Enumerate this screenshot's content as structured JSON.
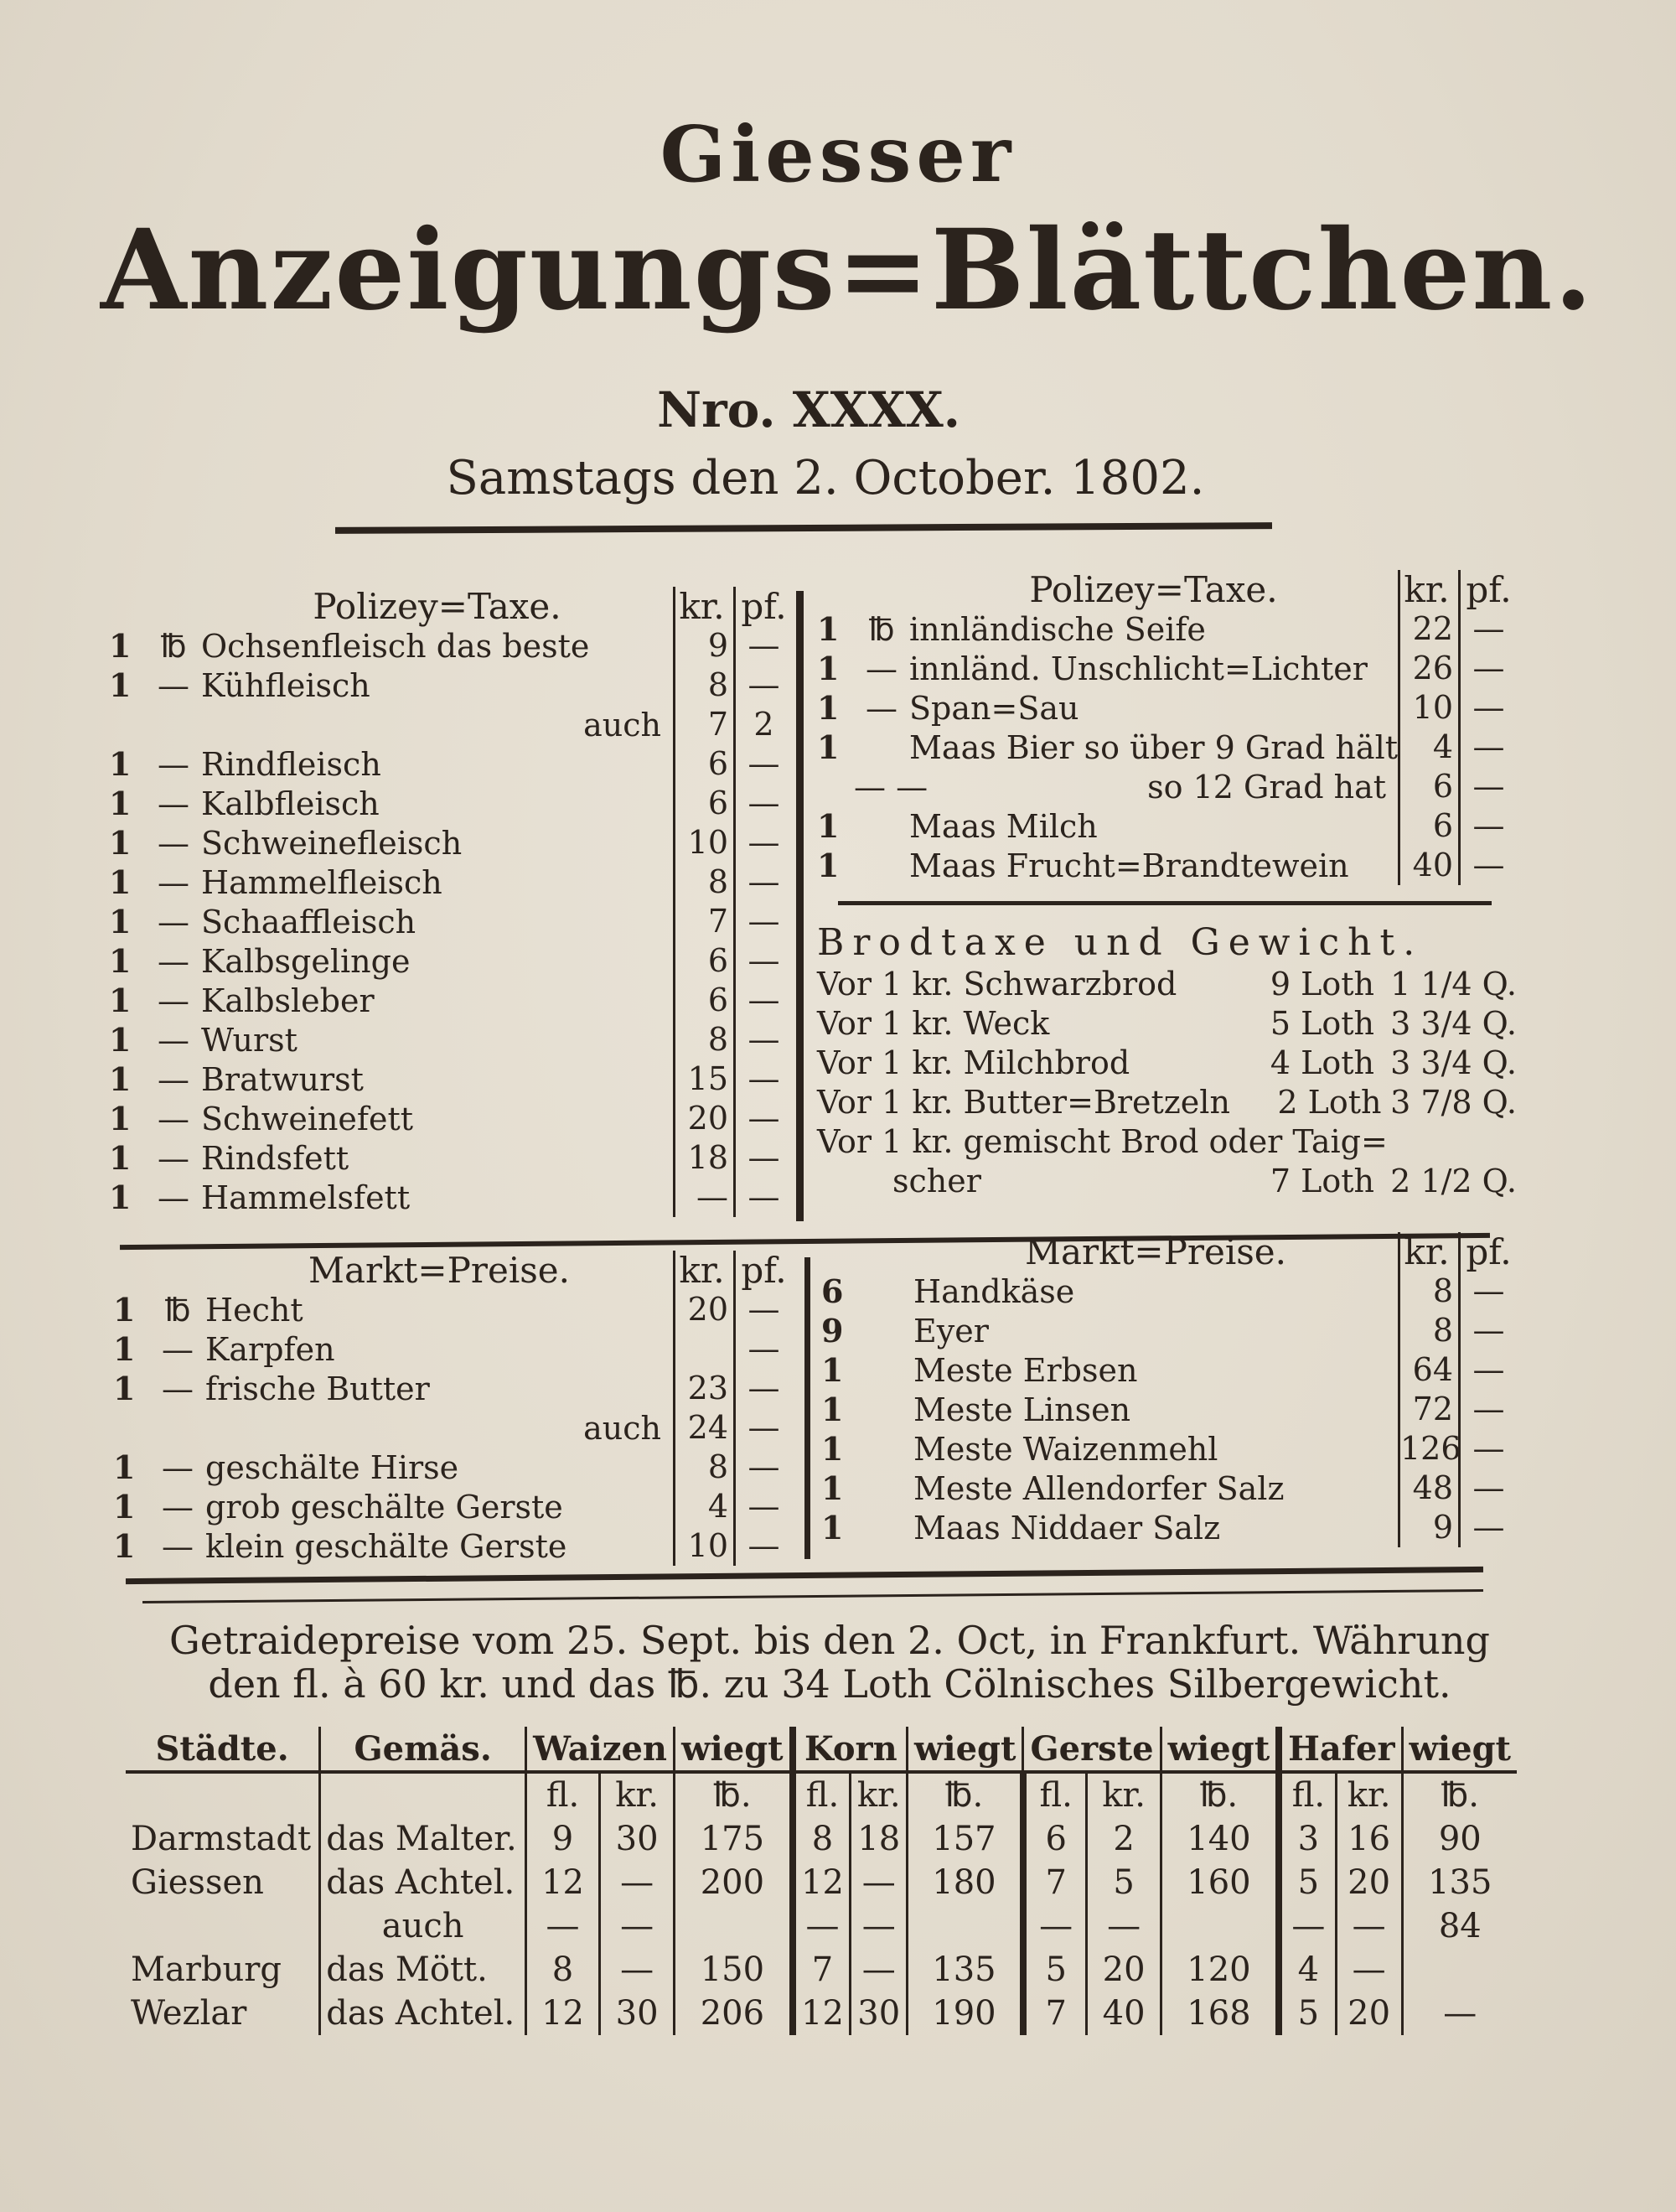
{
  "masthead": {
    "line1": "Giesser",
    "line2": "Anzeigungs=Blättchen.",
    "number": "Nro. XXXX.",
    "date": "Samstags den 2. October. 1802."
  },
  "polizey_left": {
    "title": "Polizey=Taxe.",
    "kr": "kr.",
    "pf": "pf.",
    "rows": [
      {
        "qty": "1",
        "unit": "℔",
        "item": "Ochsenfleisch das beste",
        "kr": "9",
        "pf": "—"
      },
      {
        "qty": "1",
        "unit": "—",
        "item": "Kühfleisch",
        "kr": "8",
        "pf": "—"
      },
      {
        "qty": "",
        "unit": "",
        "item": "auch",
        "kr": "7",
        "pf": "2",
        "right": true
      },
      {
        "qty": "1",
        "unit": "—",
        "item": "Rindfleisch",
        "kr": "6",
        "pf": "—"
      },
      {
        "qty": "1",
        "unit": "—",
        "item": "Kalbfleisch",
        "kr": "6",
        "pf": "—"
      },
      {
        "qty": "1",
        "unit": "—",
        "item": "Schweinefleisch",
        "kr": "10",
        "pf": "—"
      },
      {
        "qty": "1",
        "unit": "—",
        "item": "Hammelfleisch",
        "kr": "8",
        "pf": "—"
      },
      {
        "qty": "1",
        "unit": "—",
        "item": "Schaaffleisch",
        "kr": "7",
        "pf": "—"
      },
      {
        "qty": "1",
        "unit": "—",
        "item": "Kalbsgelinge",
        "kr": "6",
        "pf": "—"
      },
      {
        "qty": "1",
        "unit": "—",
        "item": "Kalbsleber",
        "kr": "6",
        "pf": "—"
      },
      {
        "qty": "1",
        "unit": "—",
        "item": "Wurst",
        "kr": "8",
        "pf": "—"
      },
      {
        "qty": "1",
        "unit": "—",
        "item": "Bratwurst",
        "kr": "15",
        "pf": "—"
      },
      {
        "qty": "1",
        "unit": "—",
        "item": "Schweinefett",
        "kr": "20",
        "pf": "—"
      },
      {
        "qty": "1",
        "unit": "—",
        "item": "Rindsfett",
        "kr": "18",
        "pf": "—"
      },
      {
        "qty": "1",
        "unit": "—",
        "item": "Hammelsfett",
        "kr": "—",
        "pf": "—"
      }
    ]
  },
  "polizey_right": {
    "title": "Polizey=Taxe.",
    "kr": "kr.",
    "pf": "pf.",
    "rows": [
      {
        "qty": "1",
        "unit": "℔",
        "item": "innländische Seife",
        "kr": "22",
        "pf": "—"
      },
      {
        "qty": "1",
        "unit": "—",
        "item": "innländ. Unschlicht=Lichter",
        "kr": "26",
        "pf": "—"
      },
      {
        "qty": "1",
        "unit": "—",
        "item": "Span=Sau",
        "kr": "10",
        "pf": "—"
      },
      {
        "qty": "1",
        "unit": "",
        "item": "Maas Bier so über 9 Grad hält",
        "kr": "4",
        "pf": "—"
      },
      {
        "qty": "",
        "unit": "— —",
        "item": "so 12 Grad hat",
        "kr": "6",
        "pf": "—",
        "right": true
      },
      {
        "qty": "1",
        "unit": "",
        "item": "Maas Milch",
        "kr": "6",
        "pf": "—"
      },
      {
        "qty": "1",
        "unit": "",
        "item": "Maas Frucht=Brandtewein",
        "kr": "40",
        "pf": "—"
      }
    ]
  },
  "brodtaxe": {
    "title": "Brodtaxe und Gewicht.",
    "rows": [
      {
        "label": "Vor 1 kr. Schwarzbrod",
        "loth": "9 Loth",
        "q": "1 1/4 Q."
      },
      {
        "label": "Vor 1 kr. Weck",
        "loth": "5 Loth",
        "q": "3 3/4 Q."
      },
      {
        "label": "Vor 1 kr. Milchbrod",
        "loth": "4 Loth",
        "q": "3 3/4 Q."
      },
      {
        "label": "Vor 1 kr. Butter=Bretzeln",
        "loth": "2 Loth",
        "q": "3 7/8 Q."
      },
      {
        "label": "Vor 1 kr. gemischt Brod oder Taig=",
        "loth": "",
        "q": ""
      },
      {
        "label": "scher",
        "loth": "7 Loth",
        "q": "2 1/2 Q."
      }
    ]
  },
  "markt_left": {
    "title": "Markt=Preise.",
    "kr": "kr.",
    "pf": "pf.",
    "rows": [
      {
        "qty": "1",
        "unit": "℔",
        "item": "Hecht",
        "kr": "20",
        "pf": "—"
      },
      {
        "qty": "1",
        "unit": "—",
        "item": "Karpfen",
        "kr": "",
        "pf": "—"
      },
      {
        "qty": "1",
        "unit": "—",
        "item": "frische Butter",
        "kr": "23",
        "pf": "—"
      },
      {
        "qty": "",
        "unit": "",
        "item": "auch",
        "kr": "24",
        "pf": "—",
        "right": true
      },
      {
        "qty": "1",
        "unit": "—",
        "item": "geschälte Hirse",
        "kr": "8",
        "pf": "—"
      },
      {
        "qty": "1",
        "unit": "—",
        "item": "grob geschälte Gerste",
        "kr": "4",
        "pf": "—"
      },
      {
        "qty": "1",
        "unit": "—",
        "item": "klein geschälte Gerste",
        "kr": "10",
        "pf": "—"
      }
    ]
  },
  "markt_right": {
    "title": "Markt=Preise.",
    "kr": "kr.",
    "pf": "pf.",
    "rows": [
      {
        "qty": "6",
        "unit": "",
        "item": "Handkäse",
        "kr": "8",
        "pf": "—"
      },
      {
        "qty": "9",
        "unit": "",
        "item": "Eyer",
        "kr": "8",
        "pf": "—"
      },
      {
        "qty": "1",
        "unit": "",
        "item": "Meste Erbsen",
        "kr": "64",
        "pf": "—"
      },
      {
        "qty": "1",
        "unit": "",
        "item": "Meste Linsen",
        "kr": "72",
        "pf": "—"
      },
      {
        "qty": "1",
        "unit": "",
        "item": "Meste Waizenmehl",
        "kr": "126",
        "pf": "—"
      },
      {
        "qty": "1",
        "unit": "",
        "item": "Meste Allendorfer Salz",
        "kr": "48",
        "pf": "—"
      },
      {
        "qty": "1",
        "unit": "",
        "item": "Maas Niddaer Salz",
        "kr": "9",
        "pf": "—"
      }
    ]
  },
  "getraide": {
    "title_line1": "Getraidepreise vom 25. Sept. bis den 2. Oct, in Frankfurt. Währung",
    "title_line2": "den fl. à 60 kr. und das ℔. zu 34 Loth Cölnisches Silbergewicht.",
    "headers": [
      "Städte.",
      "Gemäs.",
      "Waizen",
      "wiegt",
      "Korn",
      "wiegt",
      "Gerste",
      "wiegt",
      "Hafer",
      "wiegt"
    ],
    "subheaders": [
      "fl.",
      "kr.",
      "℔.",
      "fl.",
      "kr.",
      "℔.",
      "fl.",
      "kr.",
      "℔.",
      "fl.",
      "kr.",
      "℔."
    ],
    "rows": [
      {
        "city": "Darmstadt",
        "measure": "das Malter.",
        "values": [
          "9",
          "30",
          "175",
          "8",
          "18",
          "157",
          "6",
          "2",
          "140",
          "3",
          "16",
          "90"
        ]
      },
      {
        "city": "Giessen",
        "measure": "das Achtel.",
        "values": [
          "12",
          "—",
          "200",
          "12",
          "—",
          "180",
          "7",
          "5",
          "160",
          "5",
          "20",
          "135"
        ]
      },
      {
        "city": "",
        "measure": "auch",
        "values": [
          "—",
          "—",
          "",
          "—",
          "—",
          "",
          "—",
          "—",
          "",
          "—",
          "—",
          "84"
        ]
      },
      {
        "city": "Marburg",
        "measure": "das Mött.",
        "values": [
          "8",
          "—",
          "150",
          "7",
          "—",
          "135",
          "5",
          "20",
          "120",
          "4",
          "—",
          ""
        ]
      },
      {
        "city": "Wezlar",
        "measure": "das Achtel.",
        "values": [
          "12",
          "30",
          "206",
          "12",
          "30",
          "190",
          "7",
          "40",
          "168",
          "5",
          "20",
          "—"
        ]
      }
    ]
  }
}
